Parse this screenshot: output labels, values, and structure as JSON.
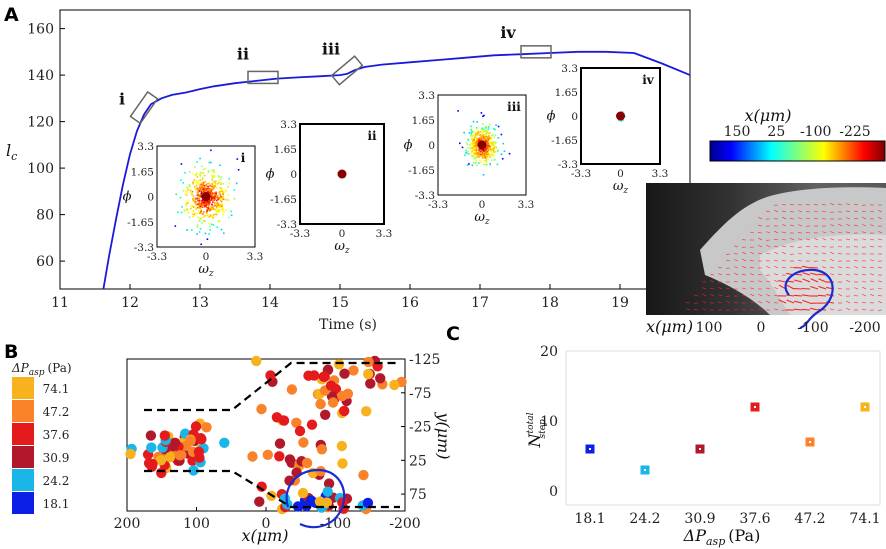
{
  "panels": {
    "a": "A",
    "b": "B",
    "c": "C"
  },
  "colors": {
    "curve": "#1a1adb",
    "dashed": "#000000",
    "circle": "#1a2ad6",
    "axis": "#000000"
  },
  "scale": [
    {
      "label": "74.1",
      "color": "#f7b21e"
    },
    {
      "label": "47.2",
      "color": "#f9822a"
    },
    {
      "label": "37.6",
      "color": "#e41a1c"
    },
    {
      "label": "30.9",
      "color": "#b2182b"
    },
    {
      "label": "24.2",
      "color": "#1bb6e8"
    },
    {
      "label": "18.1",
      "color": "#0b1fe6"
    }
  ],
  "chart_data": [
    {
      "id": "A-main",
      "type": "line",
      "xlabel": "Time (s)",
      "ylabel": "l_c",
      "ylabel_main": "l",
      "ylabel_sub": "c",
      "xlim": [
        11,
        20
      ],
      "ylim": [
        48,
        168
      ],
      "xticks": [
        11,
        12,
        13,
        14,
        15,
        16,
        17,
        18,
        19
      ],
      "yticks": [
        60,
        80,
        100,
        120,
        140,
        160
      ],
      "yticks_labels": [
        "60",
        "80",
        "100",
        "120",
        "140",
        "160"
      ],
      "xticks_labels": [
        "11",
        "12",
        "13",
        "14",
        "15",
        "16",
        "17",
        "18",
        "19"
      ],
      "series": [
        {
          "name": "l_c",
          "x": [
            11.62,
            11.7,
            11.8,
            11.9,
            12.0,
            12.1,
            12.2,
            12.3,
            12.45,
            12.6,
            12.8,
            13.0,
            13.2,
            13.5,
            13.8,
            14.1,
            14.4,
            14.7,
            15.0,
            15.1,
            15.2,
            15.35,
            15.6,
            16.0,
            16.4,
            16.8,
            17.2,
            17.6,
            18.0,
            18.4,
            18.8,
            19.2,
            19.6,
            20.0
          ],
          "y": [
            48,
            62,
            78,
            93,
            106,
            116,
            123,
            127.5,
            130,
            131.5,
            132.5,
            134,
            135.2,
            136.5,
            137.5,
            138.5,
            139,
            139.5,
            140,
            140.5,
            142,
            143.5,
            144.5,
            145.5,
            146.5,
            147.5,
            148.5,
            149,
            149.5,
            150,
            150,
            149.5,
            145,
            140
          ]
        }
      ],
      "markers": [
        {
          "label": "i",
          "x": 12.2,
          "y": 126
        },
        {
          "label": "ii",
          "x": 13.9,
          "y": 139
        },
        {
          "label": "iii",
          "x": 15.1,
          "y": 142
        },
        {
          "label": "iv",
          "x": 17.8,
          "y": 150
        }
      ]
    },
    {
      "id": "A-insets",
      "type": "scatter",
      "xlabel": "ω_z",
      "ylabel": "ϕ",
      "xlabel_main": "ω",
      "xlabel_sub": "z",
      "xlim": [
        -3.3,
        3.3
      ],
      "ylim": [
        -3.3,
        3.3
      ],
      "xticks_labels": [
        "-3.3",
        "0",
        "3.3"
      ],
      "yticks_labels": [
        "3.3",
        "1.65",
        "0",
        "-1.65",
        "-3.3"
      ],
      "insets": [
        {
          "label": "i",
          "spread": 1.1
        },
        {
          "label": "ii",
          "spread": 0.12
        },
        {
          "label": "iii",
          "spread": 0.7
        },
        {
          "label": "iv",
          "spread": 0.14
        }
      ]
    },
    {
      "id": "A-colorbar",
      "type": "heatmap",
      "title": "x(μm)",
      "ticks": [
        "150",
        "25",
        "-100",
        "-225"
      ],
      "range": [
        150,
        -225
      ]
    },
    {
      "id": "A-image",
      "type": "other",
      "xlabel": "x(μm)",
      "ticks": [
        "100",
        "0",
        "-100",
        "-200"
      ]
    },
    {
      "id": "B",
      "type": "scatter",
      "title": "ΔP_asp (Pa)",
      "title_main": "ΔP",
      "title_sub": "asp",
      "title_unit": "(Pa)",
      "xlabel": "x(μm)",
      "ylabel": "y(μm)",
      "xlim": [
        200,
        -200
      ],
      "ylim": [
        -125,
        100
      ],
      "xticks": [
        200,
        100,
        0,
        -100,
        -200
      ],
      "xticks_labels": [
        "200",
        "100",
        "0",
        "-100",
        "-200"
      ],
      "yticks": [
        -125,
        -75,
        -25,
        25,
        75
      ],
      "yticks_labels": [
        "-125",
        "-75",
        "-25",
        "25",
        "75"
      ],
      "clusters": [
        {
          "x": 130,
          "y": 0,
          "sx": 45,
          "sy": 28,
          "n": 60
        },
        {
          "x": -110,
          "y": -90,
          "sx": 70,
          "sy": 28,
          "n": 40
        },
        {
          "x": -60,
          "y": 20,
          "sx": 55,
          "sy": 60,
          "n": 40
        },
        {
          "x": -80,
          "y": 85,
          "sx": 45,
          "sy": 10,
          "n": 24
        }
      ]
    },
    {
      "id": "C",
      "type": "scatter",
      "xlabel": "ΔP_asp (Pa)",
      "ylabel": "N_step^total",
      "ylabel_main": "N",
      "ylabel_sup": "total",
      "ylabel_sub": "step",
      "ylim": [
        -2,
        20
      ],
      "yticks": [
        0,
        10,
        20
      ],
      "yticks_labels": [
        "0",
        "10",
        "20"
      ],
      "categories": [
        "18.1",
        "24.2",
        "30.9",
        "37.6",
        "47.2",
        "74.1"
      ],
      "values": [
        6,
        3,
        6,
        12,
        7,
        12
      ]
    }
  ]
}
